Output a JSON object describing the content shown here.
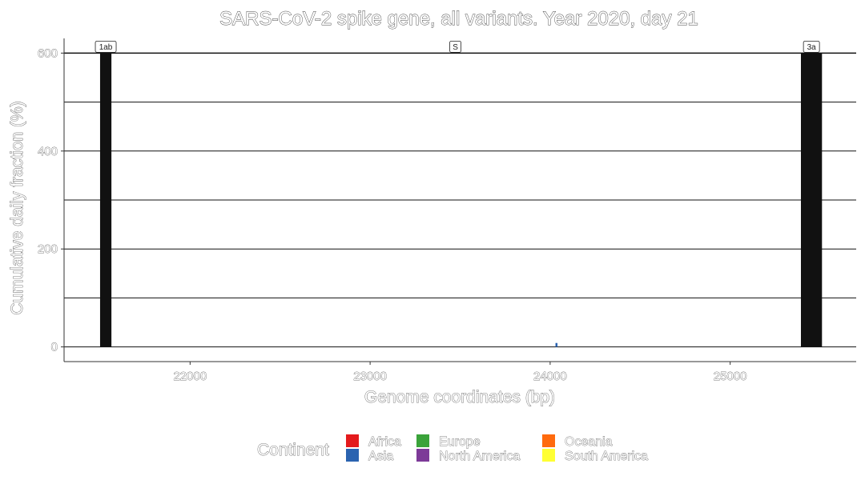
{
  "chart_data": {
    "type": "bar",
    "title": "SARS-CoV-2 spike gene, all variants. Year 2020, day 21",
    "xlabel": "Genome coordinates (bp)",
    "ylabel": "Cumulative daily fraction (%)",
    "xlim": [
      21300,
      25700
    ],
    "ylim": [
      -30,
      630
    ],
    "x_ticks": [
      22000,
      23000,
      24000,
      25000
    ],
    "y_ticks": [
      0,
      200,
      400,
      600
    ],
    "y_gridlines": [
      0,
      100,
      200,
      300,
      400,
      500,
      600
    ],
    "grid": true,
    "gene_regions": [
      {
        "name": "1ab",
        "start": 21500,
        "end": 21563,
        "value": 600
      },
      {
        "name": "S",
        "start": 21563,
        "end": 25384,
        "value": null
      },
      {
        "name": "3a",
        "start": 25393,
        "end": 25510,
        "value": 600
      }
    ],
    "series": [
      {
        "name": "Asia",
        "color": "#2b63b0",
        "points": [
          {
            "x": 24034,
            "y": 8
          }
        ]
      }
    ],
    "legend": {
      "title": "Continent",
      "placement": "bottom",
      "items": [
        {
          "label": "Africa",
          "color": "#e41a1c"
        },
        {
          "label": "Asia",
          "color": "#2b63b0"
        },
        {
          "label": "Europe",
          "color": "#3aa33a"
        },
        {
          "label": "North America",
          "color": "#7d3a98"
        },
        {
          "label": "Oceania",
          "color": "#ff6a0d"
        },
        {
          "label": "South America",
          "color": "#ffff33"
        }
      ]
    },
    "gene_bar_color": "#111111"
  }
}
